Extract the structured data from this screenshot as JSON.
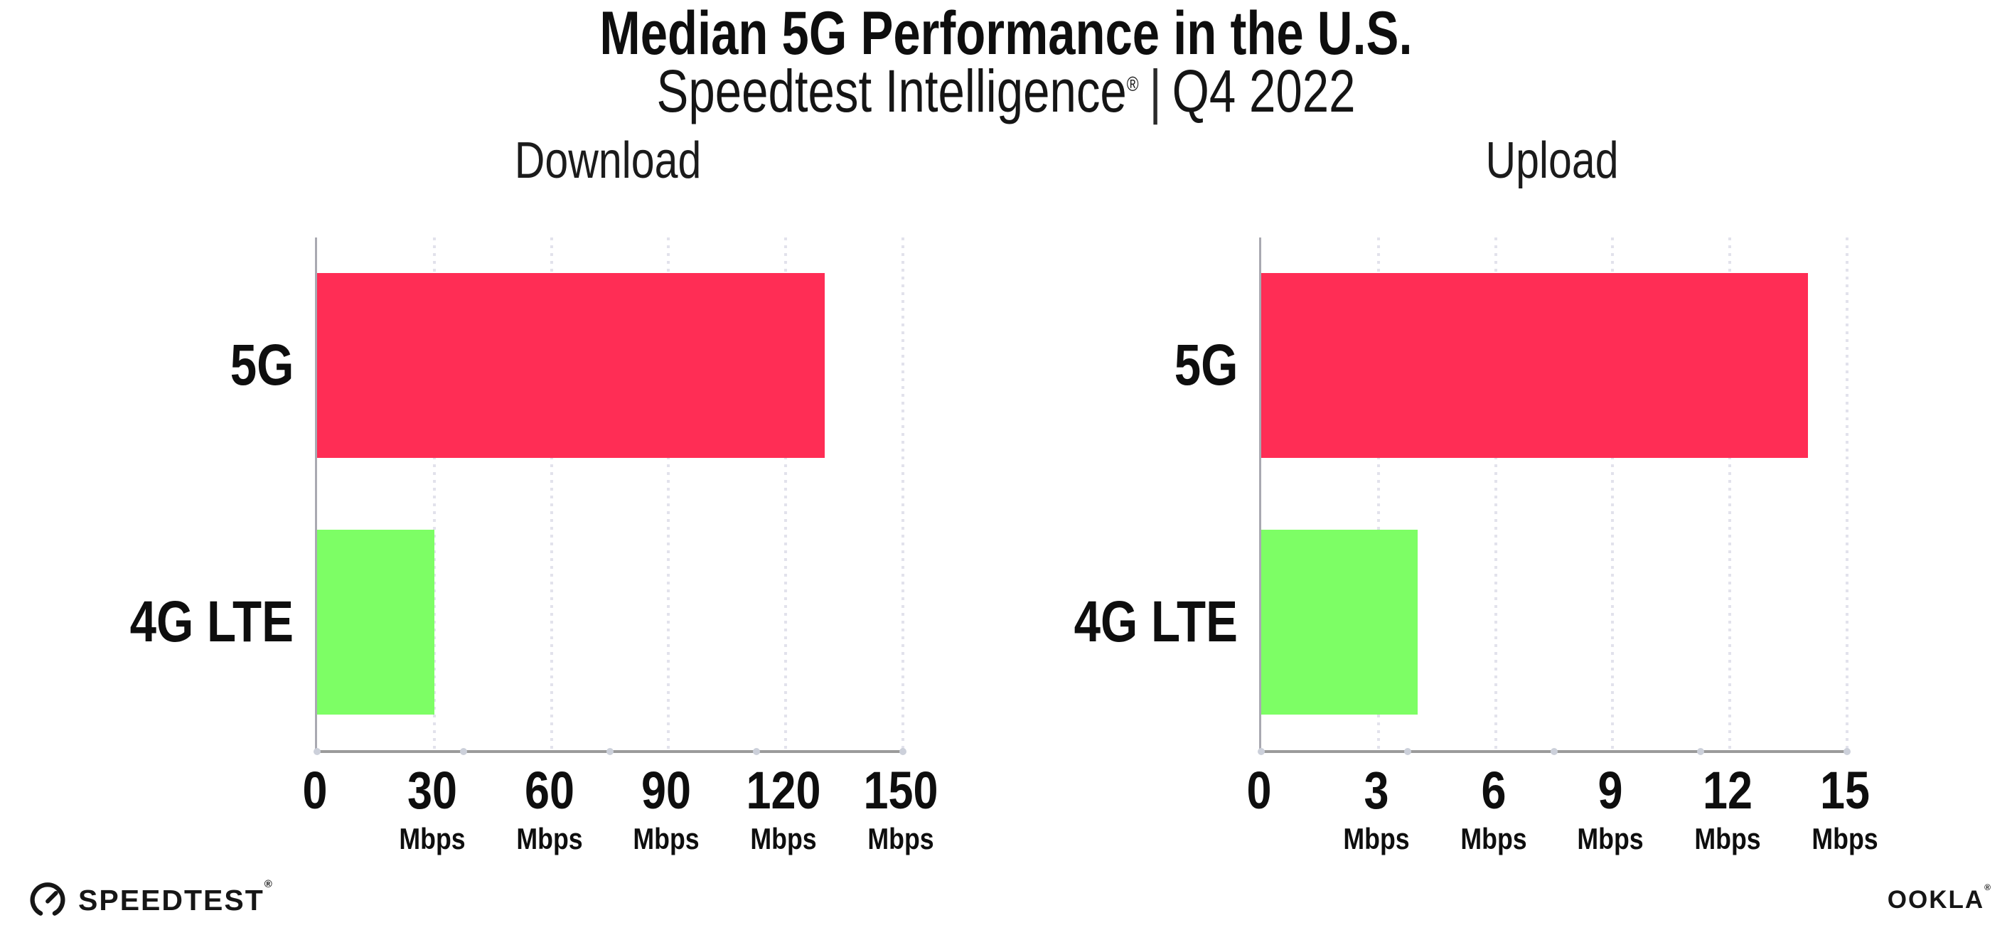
{
  "header": {
    "title": "Median 5G Performance in the U.S.",
    "subtitle_brand": "Speedtest Intelligence",
    "subtitle_reg": "®",
    "subtitle_sep": "|",
    "subtitle_period": "Q4 2022"
  },
  "chart_data": [
    {
      "type": "bar",
      "orientation": "horizontal",
      "title": "Download",
      "categories": [
        "5G",
        "4G LTE"
      ],
      "values": [
        130,
        30
      ],
      "unit": "Mbps",
      "xticks": [
        0,
        30,
        60,
        90,
        120,
        150
      ],
      "xlim": [
        0,
        150
      ],
      "bar_colors": [
        "#FF2D55",
        "#7DFE65"
      ],
      "grid": "dotted-vertical-at-each-tick",
      "legend": "none"
    },
    {
      "type": "bar",
      "orientation": "horizontal",
      "title": "Upload",
      "categories": [
        "5G",
        "4G LTE"
      ],
      "values": [
        14,
        4
      ],
      "unit": "Mbps",
      "xticks": [
        0,
        3,
        6,
        9,
        12,
        15
      ],
      "xlim": [
        0,
        15
      ],
      "bar_colors": [
        "#FF2D55",
        "#7DFE65"
      ],
      "grid": "dotted-vertical-at-each-tick",
      "legend": "none"
    }
  ],
  "colors": {
    "bar_5g": "#FF2D55",
    "bar_4g_lte": "#7DFE65",
    "axis_line": "#9b9b9b",
    "gridline_dots": "#e2e2ec",
    "text": "#0e0e0e"
  },
  "footer": {
    "speedtest_label": "SPEEDTEST",
    "speedtest_reg": "®",
    "ookla_label": "OOKLA",
    "ookla_reg": "®"
  }
}
